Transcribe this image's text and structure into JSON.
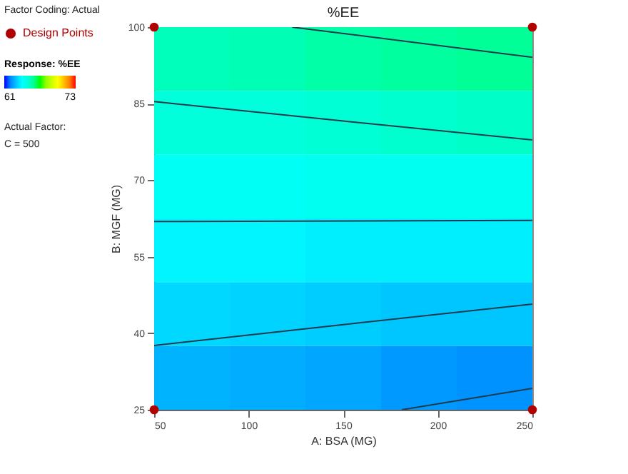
{
  "chart_data": {
    "type": "heatmap",
    "title": "%EE",
    "xlabel": "A: BSA (MG)",
    "ylabel": "B: MGF (MG)",
    "clabel": "Response: %EE",
    "annotations": [
      "Factor Coding: Actual",
      "Actual Factor:",
      "C = 500"
    ],
    "x": [
      70,
      110,
      150,
      190,
      230
    ],
    "y": [
      93.75,
      81.25,
      68.75,
      56.25,
      43.75,
      31.25
    ],
    "cells": [
      [
        65.4,
        65.5,
        65.7,
        65.8,
        65.9
      ],
      [
        64.9,
        64.9,
        65.0,
        65.1,
        65.2
      ],
      [
        64.3,
        64.3,
        64.4,
        64.4,
        64.4
      ],
      [
        63.8,
        63.8,
        63.7,
        63.7,
        63.7
      ],
      [
        63.3,
        63.2,
        63.1,
        63.0,
        63.0
      ],
      [
        62.7,
        62.6,
        62.5,
        62.3,
        62.2
      ]
    ],
    "clim": [
      61,
      73
    ],
    "cticks": [
      61,
      73
    ],
    "series": [
      {
        "type": "line",
        "color": "#1f3b4d",
        "x": [
          123,
          190,
          250
        ],
        "values": [
          100,
          96.9,
          94.1
        ]
      },
      {
        "type": "line",
        "color": "#1f3b4d",
        "x": [
          50,
          150,
          250
        ],
        "values": [
          85.4,
          81.6,
          77.9
        ]
      },
      {
        "type": "line",
        "color": "#1f3b4d",
        "x": [
          50,
          250
        ],
        "values": [
          61.9,
          62.1
        ]
      },
      {
        "type": "line",
        "color": "#1f3b4d",
        "x": [
          50,
          150,
          250
        ],
        "values": [
          37.6,
          41.7,
          45.7
        ]
      },
      {
        "type": "line",
        "color": "#1f3b4d",
        "x": [
          181,
          250
        ],
        "values": [
          25,
          29.2
        ]
      },
      {
        "type": "scatter",
        "name": "Design Points",
        "color": "#b00000",
        "marker": "circle",
        "x": [
          50,
          50,
          250,
          250
        ],
        "values": [
          25,
          100,
          25,
          100
        ]
      }
    ],
    "xlim": [
      50,
      250
    ],
    "xticks": [
      50,
      100,
      150,
      200,
      250
    ],
    "ylim": [
      25,
      100
    ],
    "yticks": [
      25,
      40,
      55,
      70,
      85,
      100
    ],
    "legend": "top left",
    "grid": false
  }
}
